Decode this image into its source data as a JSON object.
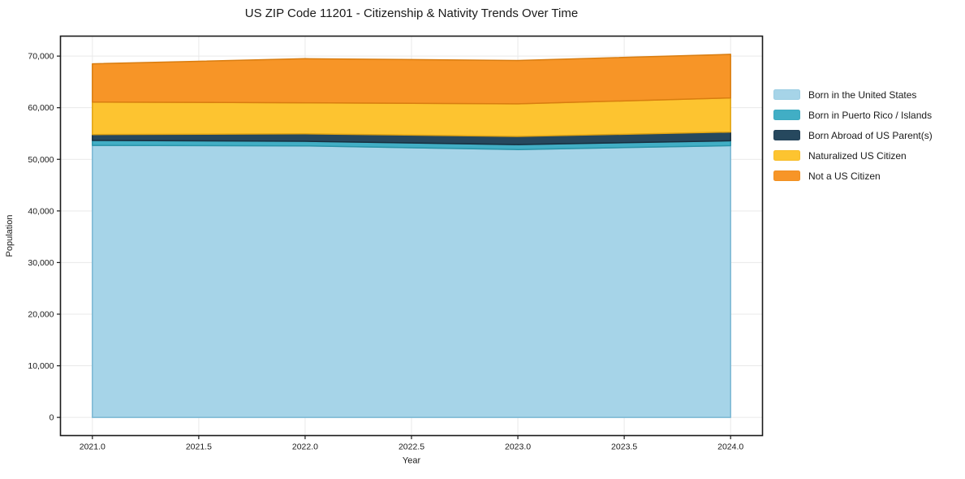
{
  "figure": {
    "title": "US ZIP Code 11201 - Citizenship & Nativity Trends Over Time"
  },
  "chart_data": {
    "type": "area",
    "stacked": true,
    "title": "US ZIP Code 11201 - Citizenship & Nativity Trends Over Time",
    "xlabel": "Year",
    "ylabel": "Population",
    "x": [
      2021,
      2022,
      2023,
      2024
    ],
    "series": [
      {
        "name": "Born in the United States",
        "values": [
          52700,
          52600,
          51900,
          52650
        ],
        "fill": "#a6d4e8",
        "edge": "#7ab7d3"
      },
      {
        "name": "Born in Puerto Rico / Islands",
        "values": [
          950,
          900,
          950,
          950
        ],
        "fill": "#41aec5",
        "edge": "#2b95aa"
      },
      {
        "name": "Born Abroad of US Parent(s)",
        "values": [
          1150,
          1450,
          1600,
          1700
        ],
        "fill": "#26485e",
        "edge": "#172f3f"
      },
      {
        "name": "Naturalized US Citizen",
        "values": [
          6300,
          6000,
          6300,
          6600
        ],
        "fill": "#fdc430",
        "edge": "#e0a414"
      },
      {
        "name": "Not a US Citizen",
        "values": [
          7400,
          8550,
          8400,
          8450
        ],
        "fill": "#f79527",
        "edge": "#d97d10"
      }
    ],
    "stack_totals": [
      68500,
      69500,
      69150,
      70350
    ],
    "xlim": [
      2020.85,
      2024.15
    ],
    "ylim": [
      -3520,
      73870
    ],
    "x_ticks": [
      2021.0,
      2021.5,
      2022.0,
      2022.5,
      2023.0,
      2023.5,
      2024.0
    ],
    "x_tick_labels": [
      "2021.0",
      "2021.5",
      "2022.0",
      "2022.5",
      "2023.0",
      "2023.5",
      "2024.0"
    ],
    "y_ticks": [
      0,
      10000,
      20000,
      30000,
      40000,
      50000,
      60000,
      70000
    ],
    "y_tick_labels": [
      "0",
      "10,000",
      "20,000",
      "30,000",
      "40,000",
      "50,000",
      "60,000",
      "70,000"
    ],
    "grid": true,
    "legend_position": "right-outside"
  },
  "style": {
    "grid_color": "#e9e9e9",
    "spine_color": "#1a1a1a",
    "tick_color": "#1a1a1a",
    "text_color": "#1a1a1a",
    "background": "#ffffff"
  },
  "legend": {
    "items": [
      {
        "label": "Born in the United States"
      },
      {
        "label": "Born in Puerto Rico / Islands"
      },
      {
        "label": "Born Abroad of US Parent(s)"
      },
      {
        "label": "Naturalized US Citizen"
      },
      {
        "label": "Not a US Citizen"
      }
    ]
  }
}
